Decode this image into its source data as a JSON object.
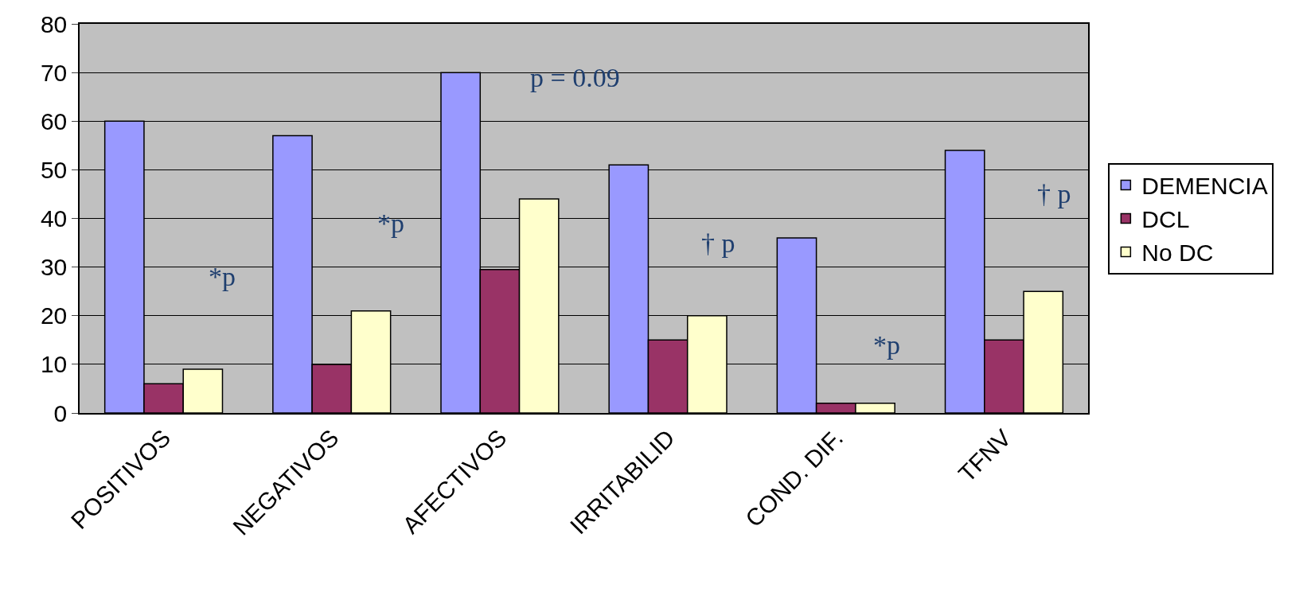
{
  "chart_data": {
    "type": "bar",
    "categories": [
      "POSITIVOS",
      "NEGATIVOS",
      "AFECTIVOS",
      "IRRITABILID",
      "COND. DIF.",
      "TFNV"
    ],
    "series": [
      {
        "name": "DEMENCIA",
        "color": "#9999ff",
        "values": [
          60,
          57,
          70,
          51,
          36,
          54
        ]
      },
      {
        "name": "DCL",
        "color": "#993366",
        "values": [
          6,
          10,
          29.5,
          15,
          2,
          15
        ]
      },
      {
        "name": "No DC",
        "color": "#ffffcc",
        "values": [
          9,
          21,
          44,
          20,
          2,
          25
        ]
      }
    ],
    "ylim": [
      0,
      80
    ],
    "yticks": [
      0,
      10,
      20,
      30,
      40,
      50,
      60,
      70,
      80
    ],
    "grid": "y",
    "legend": "right",
    "annotations": [
      "*p",
      "*p",
      "p = 0.09",
      "† p",
      "*p",
      "† p"
    ]
  }
}
